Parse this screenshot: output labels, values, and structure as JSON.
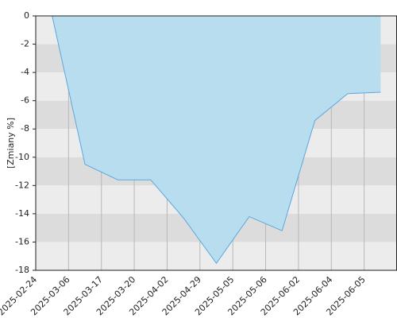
{
  "chart_data": {
    "type": "area",
    "y_label": "[Zmiany %]",
    "categories": [
      "2025-02-24",
      "2025-03-06",
      "2025-03-17",
      "2025-03-20",
      "2025-04-02",
      "2025-04-29",
      "2025-05-05",
      "2025-05-06",
      "2025-06-02",
      "2025-06-04",
      "2025-06-05"
    ],
    "values": [
      0,
      -10.5,
      -11.6,
      -11.6,
      -14.3,
      -17.5,
      -14.2,
      -15.2,
      -7.4,
      -5.5,
      -5.4
    ],
    "color": "#b8ddee",
    "line_color": "#5aa8e0",
    "ylim": [
      -18,
      0
    ],
    "yticks": [
      0,
      -2,
      -4,
      -6,
      -8,
      -10,
      -12,
      -14,
      -16,
      -18
    ],
    "band_colors": [
      "#ececec",
      "#dcdcdc"
    ],
    "grid": true
  }
}
